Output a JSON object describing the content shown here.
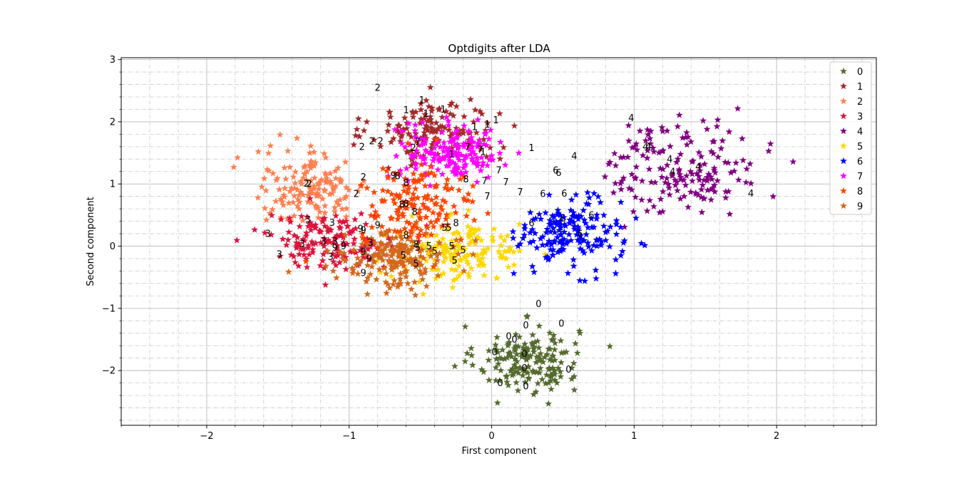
{
  "chart_data": {
    "type": "scatter",
    "title": "Optdigits after LDA",
    "xlabel": "First component",
    "ylabel": "Second component",
    "xlim": [
      -2.6,
      2.7
    ],
    "ylim": [
      -2.88,
      3.03
    ],
    "xticks": [
      -2,
      -1,
      0,
      1,
      2
    ],
    "yticks": [
      -2,
      -1,
      0,
      1,
      2,
      3
    ],
    "xtick_labels": [
      "−2",
      "−1",
      "0",
      "1",
      "2"
    ],
    "ytick_labels": [
      "−2",
      "−1",
      "0",
      "1",
      "2",
      "3"
    ],
    "minor_tick_step": 0.2,
    "grid": "major and minor, dash-dot minor",
    "legend_placement": "top-right",
    "marker": "star",
    "series": [
      {
        "name": "0",
        "color": "#556b2f",
        "center": [
          0.25,
          -1.82
        ],
        "spread": [
          0.18,
          0.27
        ],
        "count": 170
      },
      {
        "name": "1",
        "color": "#a52a2a",
        "center": [
          -0.4,
          1.85
        ],
        "spread": [
          0.22,
          0.26
        ],
        "count": 150
      },
      {
        "name": "2",
        "color": "#ff7f50",
        "center": [
          -1.27,
          0.95
        ],
        "spread": [
          0.2,
          0.3
        ],
        "count": 150
      },
      {
        "name": "3",
        "color": "#dc143c",
        "center": [
          -1.12,
          0.1
        ],
        "spread": [
          0.23,
          0.22
        ],
        "count": 160
      },
      {
        "name": "4",
        "color": "#800080",
        "center": [
          1.35,
          1.25
        ],
        "spread": [
          0.27,
          0.38
        ],
        "count": 170
      },
      {
        "name": "5",
        "color": "#ffd700",
        "center": [
          -0.25,
          -0.1
        ],
        "spread": [
          0.24,
          0.24
        ],
        "count": 170
      },
      {
        "name": "6",
        "color": "#0000ff",
        "center": [
          0.55,
          0.2
        ],
        "spread": [
          0.18,
          0.28
        ],
        "count": 170
      },
      {
        "name": "7",
        "color": "#ff00ff",
        "center": [
          -0.28,
          1.5
        ],
        "spread": [
          0.18,
          0.22
        ],
        "count": 170
      },
      {
        "name": "8",
        "color": "#ff4500",
        "center": [
          -0.52,
          0.65
        ],
        "spread": [
          0.2,
          0.32
        ],
        "count": 160
      },
      {
        "name": "9",
        "color": "#d2691e",
        "center": [
          -0.68,
          -0.22
        ],
        "spread": [
          0.18,
          0.22
        ],
        "count": 170
      }
    ],
    "annotations": [
      {
        "text": "0",
        "x": 0.33,
        "y": -0.93
      },
      {
        "text": "0",
        "x": 0.24,
        "y": -1.27
      },
      {
        "text": "0",
        "x": 0.49,
        "y": -1.24
      },
      {
        "text": "0",
        "x": 0.12,
        "y": -1.45
      },
      {
        "text": "0",
        "x": 0.16,
        "y": -1.5
      },
      {
        "text": "0",
        "x": 0.02,
        "y": -1.7
      },
      {
        "text": "0",
        "x": 0.23,
        "y": -1.73
      },
      {
        "text": "0",
        "x": 0.23,
        "y": -1.96
      },
      {
        "text": "0",
        "x": 0.54,
        "y": -1.98
      },
      {
        "text": "0",
        "x": 0.06,
        "y": -2.2
      },
      {
        "text": "0",
        "x": 0.24,
        "y": -2.25
      },
      {
        "text": "1",
        "x": -0.49,
        "y": 2.35
      },
      {
        "text": "1",
        "x": -0.6,
        "y": 2.19
      },
      {
        "text": "1",
        "x": -0.46,
        "y": 2.13
      },
      {
        "text": "1",
        "x": -0.34,
        "y": 2.2
      },
      {
        "text": "1",
        "x": -0.12,
        "y": 1.92
      },
      {
        "text": "1",
        "x": -0.03,
        "y": 1.96
      },
      {
        "text": "1",
        "x": 0.03,
        "y": 2.03
      },
      {
        "text": "1",
        "x": -0.28,
        "y": 1.48
      },
      {
        "text": "1",
        "x": -0.06,
        "y": 1.52
      },
      {
        "text": "1",
        "x": 0.28,
        "y": 1.58
      },
      {
        "text": "2",
        "x": -0.8,
        "y": 2.55
      },
      {
        "text": "2",
        "x": -0.91,
        "y": 1.6
      },
      {
        "text": "2",
        "x": -0.84,
        "y": 1.69
      },
      {
        "text": "2",
        "x": -0.78,
        "y": 1.69
      },
      {
        "text": "2",
        "x": -0.9,
        "y": 1.11
      },
      {
        "text": "2",
        "x": -0.95,
        "y": 0.84
      },
      {
        "text": "2",
        "x": -1.28,
        "y": 1.0
      },
      {
        "text": "2",
        "x": -1.3,
        "y": 1.01
      },
      {
        "text": "2",
        "x": -0.55,
        "y": 1.58
      },
      {
        "text": "3",
        "x": -1.57,
        "y": 0.2
      },
      {
        "text": "3",
        "x": -1.29,
        "y": 0.43
      },
      {
        "text": "3",
        "x": -1.12,
        "y": 0.38
      },
      {
        "text": "3",
        "x": -1.33,
        "y": 0.04
      },
      {
        "text": "3",
        "x": -1.18,
        "y": 0.08
      },
      {
        "text": "3",
        "x": -1.1,
        "y": 0.08
      },
      {
        "text": "3",
        "x": -1.49,
        "y": -0.13
      },
      {
        "text": "3",
        "x": -1.13,
        "y": -0.17
      },
      {
        "text": "3",
        "x": -0.85,
        "y": 0.06
      },
      {
        "text": "4",
        "x": 0.98,
        "y": 2.06
      },
      {
        "text": "4",
        "x": 1.08,
        "y": 1.6
      },
      {
        "text": "4",
        "x": 1.1,
        "y": 1.6
      },
      {
        "text": "4",
        "x": 1.25,
        "y": 1.4
      },
      {
        "text": "4",
        "x": 1.27,
        "y": 1.2
      },
      {
        "text": "4",
        "x": 1.45,
        "y": 1.28
      },
      {
        "text": "4",
        "x": 1.82,
        "y": 0.85
      },
      {
        "text": "4",
        "x": 0.58,
        "y": 1.45
      },
      {
        "text": "5",
        "x": -0.62,
        "y": -0.15
      },
      {
        "text": "5",
        "x": -0.52,
        "y": -0.02
      },
      {
        "text": "5",
        "x": -0.44,
        "y": 0.0
      },
      {
        "text": "5",
        "x": -0.4,
        "y": -0.08
      },
      {
        "text": "5",
        "x": -0.33,
        "y": 0.3
      },
      {
        "text": "5",
        "x": -0.3,
        "y": 0.3
      },
      {
        "text": "5",
        "x": -0.28,
        "y": 0.0
      },
      {
        "text": "5",
        "x": -0.2,
        "y": -0.06
      },
      {
        "text": "5",
        "x": -0.53,
        "y": -0.28
      },
      {
        "text": "5",
        "x": -0.26,
        "y": -0.23
      },
      {
        "text": "6",
        "x": 0.45,
        "y": 1.22
      },
      {
        "text": "6",
        "x": 0.47,
        "y": 1.18
      },
      {
        "text": "6",
        "x": 0.36,
        "y": 0.84
      },
      {
        "text": "6",
        "x": 0.51,
        "y": 0.85
      },
      {
        "text": "6",
        "x": 0.5,
        "y": 0.45
      },
      {
        "text": "6",
        "x": 0.7,
        "y": 0.5
      },
      {
        "text": "6",
        "x": 0.28,
        "y": 0.37
      },
      {
        "text": "6",
        "x": 0.62,
        "y": 0.2
      },
      {
        "text": "7",
        "x": -0.52,
        "y": 1.68
      },
      {
        "text": "7",
        "x": -0.17,
        "y": 1.59
      },
      {
        "text": "7",
        "x": -0.08,
        "y": 1.55
      },
      {
        "text": "7",
        "x": 0.05,
        "y": 1.22
      },
      {
        "text": "7",
        "x": 0.1,
        "y": 1.03
      },
      {
        "text": "7",
        "x": 0.2,
        "y": 0.87
      },
      {
        "text": "7",
        "x": -0.03,
        "y": 0.8
      },
      {
        "text": "7",
        "x": -0.05,
        "y": 1.05
      },
      {
        "text": "8",
        "x": -0.66,
        "y": 1.13
      },
      {
        "text": "8",
        "x": -0.6,
        "y": 1.02
      },
      {
        "text": "8",
        "x": -0.18,
        "y": 1.08
      },
      {
        "text": "8",
        "x": -0.63,
        "y": 0.67
      },
      {
        "text": "8",
        "x": -0.6,
        "y": 0.68
      },
      {
        "text": "8",
        "x": -0.54,
        "y": 0.55
      },
      {
        "text": "8",
        "x": -0.6,
        "y": 0.18
      },
      {
        "text": "8",
        "x": -0.53,
        "y": 0.03
      },
      {
        "text": "8",
        "x": -0.25,
        "y": 0.37
      },
      {
        "text": "9",
        "x": -0.69,
        "y": 1.14
      },
      {
        "text": "9",
        "x": -0.92,
        "y": 0.28
      },
      {
        "text": "9",
        "x": -0.9,
        "y": 0.26
      },
      {
        "text": "9",
        "x": -0.8,
        "y": 0.34
      },
      {
        "text": "9",
        "x": -0.9,
        "y": -0.09
      },
      {
        "text": "9",
        "x": -0.86,
        "y": -0.2
      },
      {
        "text": "9",
        "x": -0.9,
        "y": -0.43
      },
      {
        "text": "9",
        "x": -1.04,
        "y": 0.0
      },
      {
        "text": "9",
        "x": -1.1,
        "y": -0.02
      }
    ]
  }
}
